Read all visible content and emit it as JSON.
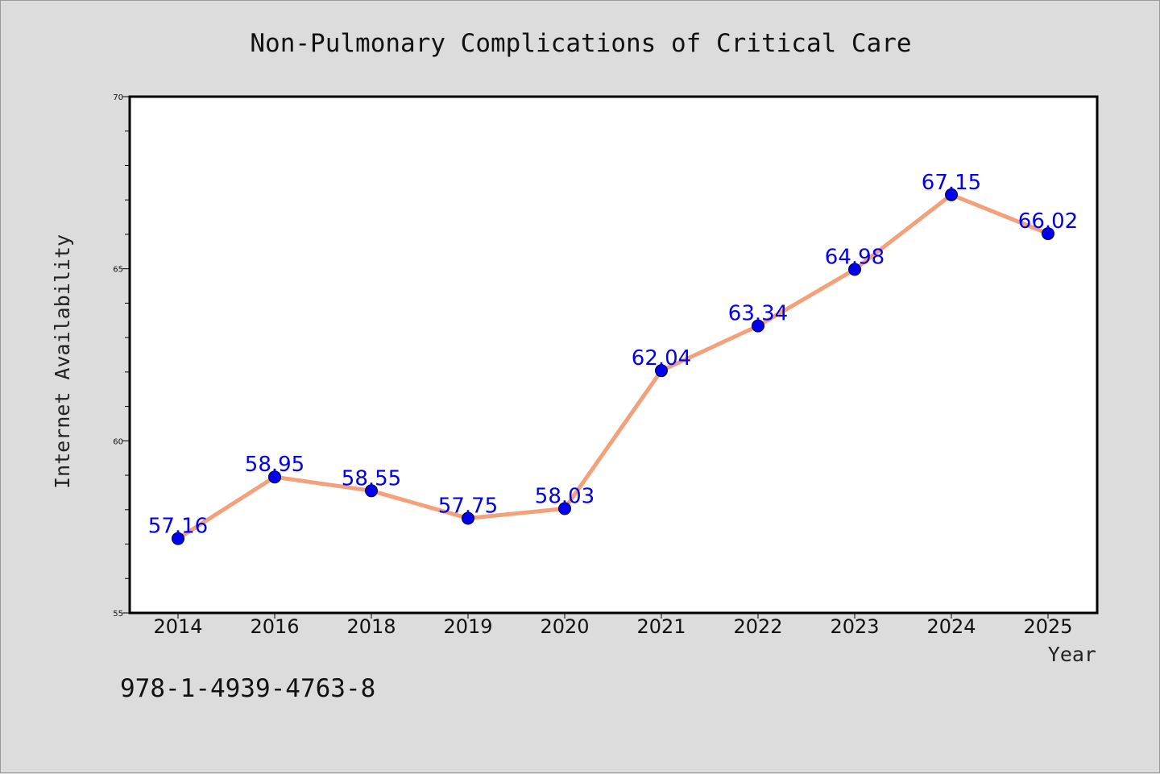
{
  "chart_data": {
    "type": "line",
    "title": "Non-Pulmonary Complications of Critical Care",
    "xlabel": "Year",
    "ylabel": "Internet Availability",
    "categories": [
      "2014",
      "2016",
      "2018",
      "2019",
      "2020",
      "2021",
      "2022",
      "2023",
      "2024",
      "2025"
    ],
    "series": [
      {
        "values": [
          57.16,
          58.95,
          58.55,
          57.75,
          58.03,
          62.04,
          63.34,
          64.98,
          67.15,
          66.02
        ],
        "data_labels": [
          "57.16",
          "58.95",
          "58.55",
          "57.75",
          "58.03",
          "62.04",
          "63.34",
          "64.98",
          "67.15",
          "66.02"
        ],
        "line_color": "#f4a07a",
        "marker_color": "#0000ee"
      }
    ],
    "ylim": [
      55,
      70
    ],
    "yticks": [
      55,
      60,
      65,
      70
    ],
    "ytick_labels": [
      "55",
      "60",
      "65",
      "70"
    ],
    "y_minor_step": 1,
    "grid": false,
    "legend": "none"
  },
  "footer": {
    "isbn": "978-1-4939-4763-8"
  },
  "colors": {
    "background": "#dcdcdc",
    "plot_background": "#ffffff",
    "axis": "#000000",
    "data_label": "#0000ee"
  }
}
